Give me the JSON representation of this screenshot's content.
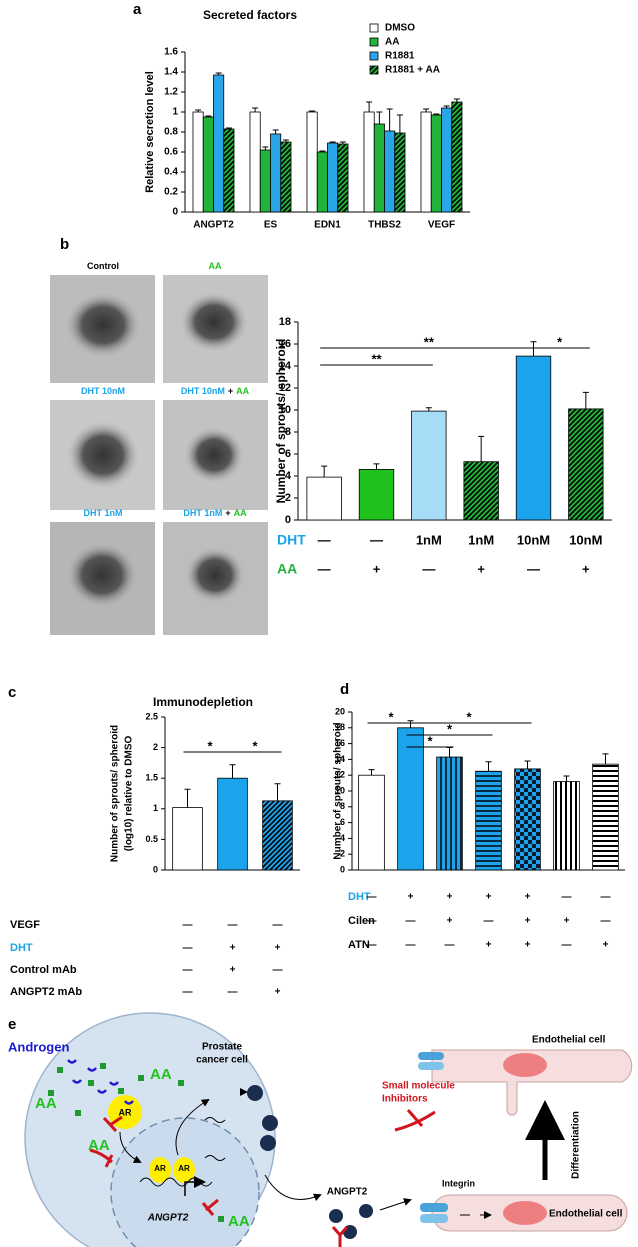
{
  "panels": [
    "a",
    "b",
    "c",
    "d",
    "e"
  ],
  "chart_data": [
    {
      "type": "bar",
      "title": "Secreted factors",
      "ylabel": "Relative secretion level",
      "categories": [
        "ANGPT2",
        "ES",
        "EDN1",
        "THBS2",
        "VEGF"
      ],
      "ylim": [
        0,
        1.6
      ],
      "yticks": [
        0,
        0.2,
        0.4,
        0.6,
        0.8,
        1,
        1.2,
        1.4,
        1.6
      ],
      "series": [
        {
          "name": "DMSO",
          "color": "#ffffff",
          "pattern": "solid",
          "values": [
            1,
            1,
            1,
            1,
            1
          ],
          "errors": [
            0.02,
            0.04,
            0.01,
            0.1,
            0.03
          ]
        },
        {
          "name": "AA",
          "color": "#22b33a",
          "pattern": "solid",
          "values": [
            0.95,
            0.62,
            0.6,
            0.88,
            0.97
          ],
          "errors": [
            0.01,
            0.03,
            0.01,
            0.12,
            0.01
          ]
        },
        {
          "name": "R1881",
          "color": "#2aa5e8",
          "pattern": "solid",
          "values": [
            1.37,
            0.78,
            0.69,
            0.81,
            1.04
          ],
          "errors": [
            0.02,
            0.04,
            0.01,
            0.22,
            0.02
          ]
        },
        {
          "name": "R1881 + AA",
          "color": "#22b33a",
          "pattern": "diagonal",
          "values": [
            0.83,
            0.7,
            0.68,
            0.79,
            1.1
          ],
          "errors": [
            0.01,
            0.02,
            0.02,
            0.18,
            0.03
          ]
        }
      ]
    },
    {
      "type": "bar",
      "ylabel": "Number of sprouts/ spheroid",
      "ylim": [
        0,
        18
      ],
      "yticks": [
        0,
        2,
        4,
        6,
        8,
        10,
        12,
        14,
        16,
        18
      ],
      "values": [
        3.9,
        4.6,
        9.9,
        5.3,
        14.9,
        10.1
      ],
      "errors": [
        1.0,
        0.5,
        0.3,
        2.3,
        1.3,
        1.5
      ],
      "colors": [
        "#ffffff",
        "#22c21e",
        "#a6dcf5",
        "#22b33a",
        "#1ba3ec",
        "#22b33a"
      ],
      "patterns": [
        "solid",
        "solid",
        "solid",
        "diagonal",
        "solid",
        "diagonal"
      ],
      "annotations": [
        "**",
        "**",
        "*"
      ],
      "rows": [
        {
          "name": "DHT",
          "color": "#1ba3e8",
          "values": [
            "—",
            "—",
            "1nM",
            "1nM",
            "10nM",
            "10nM"
          ]
        },
        {
          "name": "AA",
          "color": "#22b33a",
          "values": [
            "—",
            "+",
            "—",
            "+",
            "—",
            "+"
          ]
        }
      ]
    },
    {
      "type": "bar",
      "title": "Immunodepletion",
      "ylabel": [
        "Number of sprouts/ spheroid",
        "(log10) relative to DMSO"
      ],
      "ylim": [
        0,
        2.5
      ],
      "yticks": [
        0,
        0.5,
        1,
        1.5,
        2,
        2.5
      ],
      "values": [
        1.02,
        1.5,
        1.13
      ],
      "errors": [
        0.3,
        0.22,
        0.28
      ],
      "colors": [
        "#ffffff",
        "#1ba3ec",
        "#1ba3ec"
      ],
      "patterns": [
        "solid",
        "solid",
        "diagonal"
      ],
      "annotations": [
        "*",
        "*"
      ],
      "rows": [
        {
          "name": "VEGF",
          "color": "#000000",
          "values": [
            "—",
            "—",
            "—"
          ]
        },
        {
          "name": "DHT",
          "color": "#1ba3e8",
          "values": [
            "—",
            "+",
            "+"
          ]
        },
        {
          "name": "Control mAb",
          "color": "#000000",
          "values": [
            "—",
            "+",
            "—"
          ]
        },
        {
          "name": "ANGPT2 mAb",
          "color": "#000000",
          "values": [
            "—",
            "—",
            "+"
          ]
        }
      ]
    },
    {
      "type": "bar",
      "ylabel": "Number of sprouts/ spheroid",
      "ylim": [
        0,
        20
      ],
      "yticks": [
        0,
        2,
        4,
        6,
        8,
        10,
        12,
        14,
        16,
        18,
        20
      ],
      "values": [
        12,
        18,
        14.3,
        12.5,
        12.8,
        11.2,
        13.4
      ],
      "errors": [
        0.7,
        0.9,
        1.2,
        1.2,
        1.0,
        0.7,
        1.3
      ],
      "colors": [
        "#ffffff",
        "#1ba3ec",
        "#1ba3ec",
        "#1ba3ec",
        "#1ba3ec",
        "#000000",
        "#000000"
      ],
      "patterns": [
        "solid",
        "solid",
        "vertical",
        "horizontal",
        "checker",
        "vertical",
        "horizontal"
      ],
      "annotations": [
        "*",
        "*",
        "*",
        "*"
      ],
      "rows": [
        {
          "name": "DHT",
          "color": "#1ba3e8",
          "values": [
            "—",
            "+",
            "+",
            "+",
            "+",
            "—",
            "—"
          ]
        },
        {
          "name": "Cilen",
          "color": "#000000",
          "values": [
            "—",
            "—",
            "+",
            "—",
            "+",
            "+",
            "—"
          ]
        },
        {
          "name": "ATN",
          "color": "#000000",
          "values": [
            "—",
            "—",
            "—",
            "+",
            "+",
            "—",
            "+"
          ]
        }
      ]
    }
  ],
  "spheroid_images": {
    "labels": [
      [
        {
          "text": "Control",
          "color": "#000000"
        }
      ],
      [
        {
          "text": "AA",
          "color": "#22c21e"
        }
      ],
      [
        {
          "text": "DHT 10nM",
          "color": "#1ba3e8"
        }
      ],
      [
        {
          "text": "DHT 10nM",
          "color": "#1ba3e8"
        },
        {
          "text": "+",
          "color": "#000000"
        },
        {
          "text": "AA",
          "color": "#22c21e"
        }
      ],
      [
        {
          "text": "DHT 1nM",
          "color": "#1ba3e8"
        }
      ],
      [
        {
          "text": "DHT 1nM",
          "color": "#1ba3e8"
        },
        {
          "text": "+",
          "color": "#000000"
        },
        {
          "text": "AA",
          "color": "#22c21e"
        }
      ]
    ]
  },
  "diagram": {
    "androgen": "Androgen",
    "cell": [
      "Prostate",
      "cancer cell"
    ],
    "aa": [
      "AA",
      "AA",
      "AA",
      "AA"
    ],
    "ar": [
      "AR",
      "AR",
      "AR"
    ],
    "gene": "ANGPT2",
    "protein": "ANGPT2",
    "inhibitor": [
      "Small molecule",
      "Inhibitors"
    ],
    "integrin": "Integrin",
    "endothelial": [
      "Endothelial cell",
      "Endothelial cell"
    ],
    "differentiation": "Differentiation"
  }
}
